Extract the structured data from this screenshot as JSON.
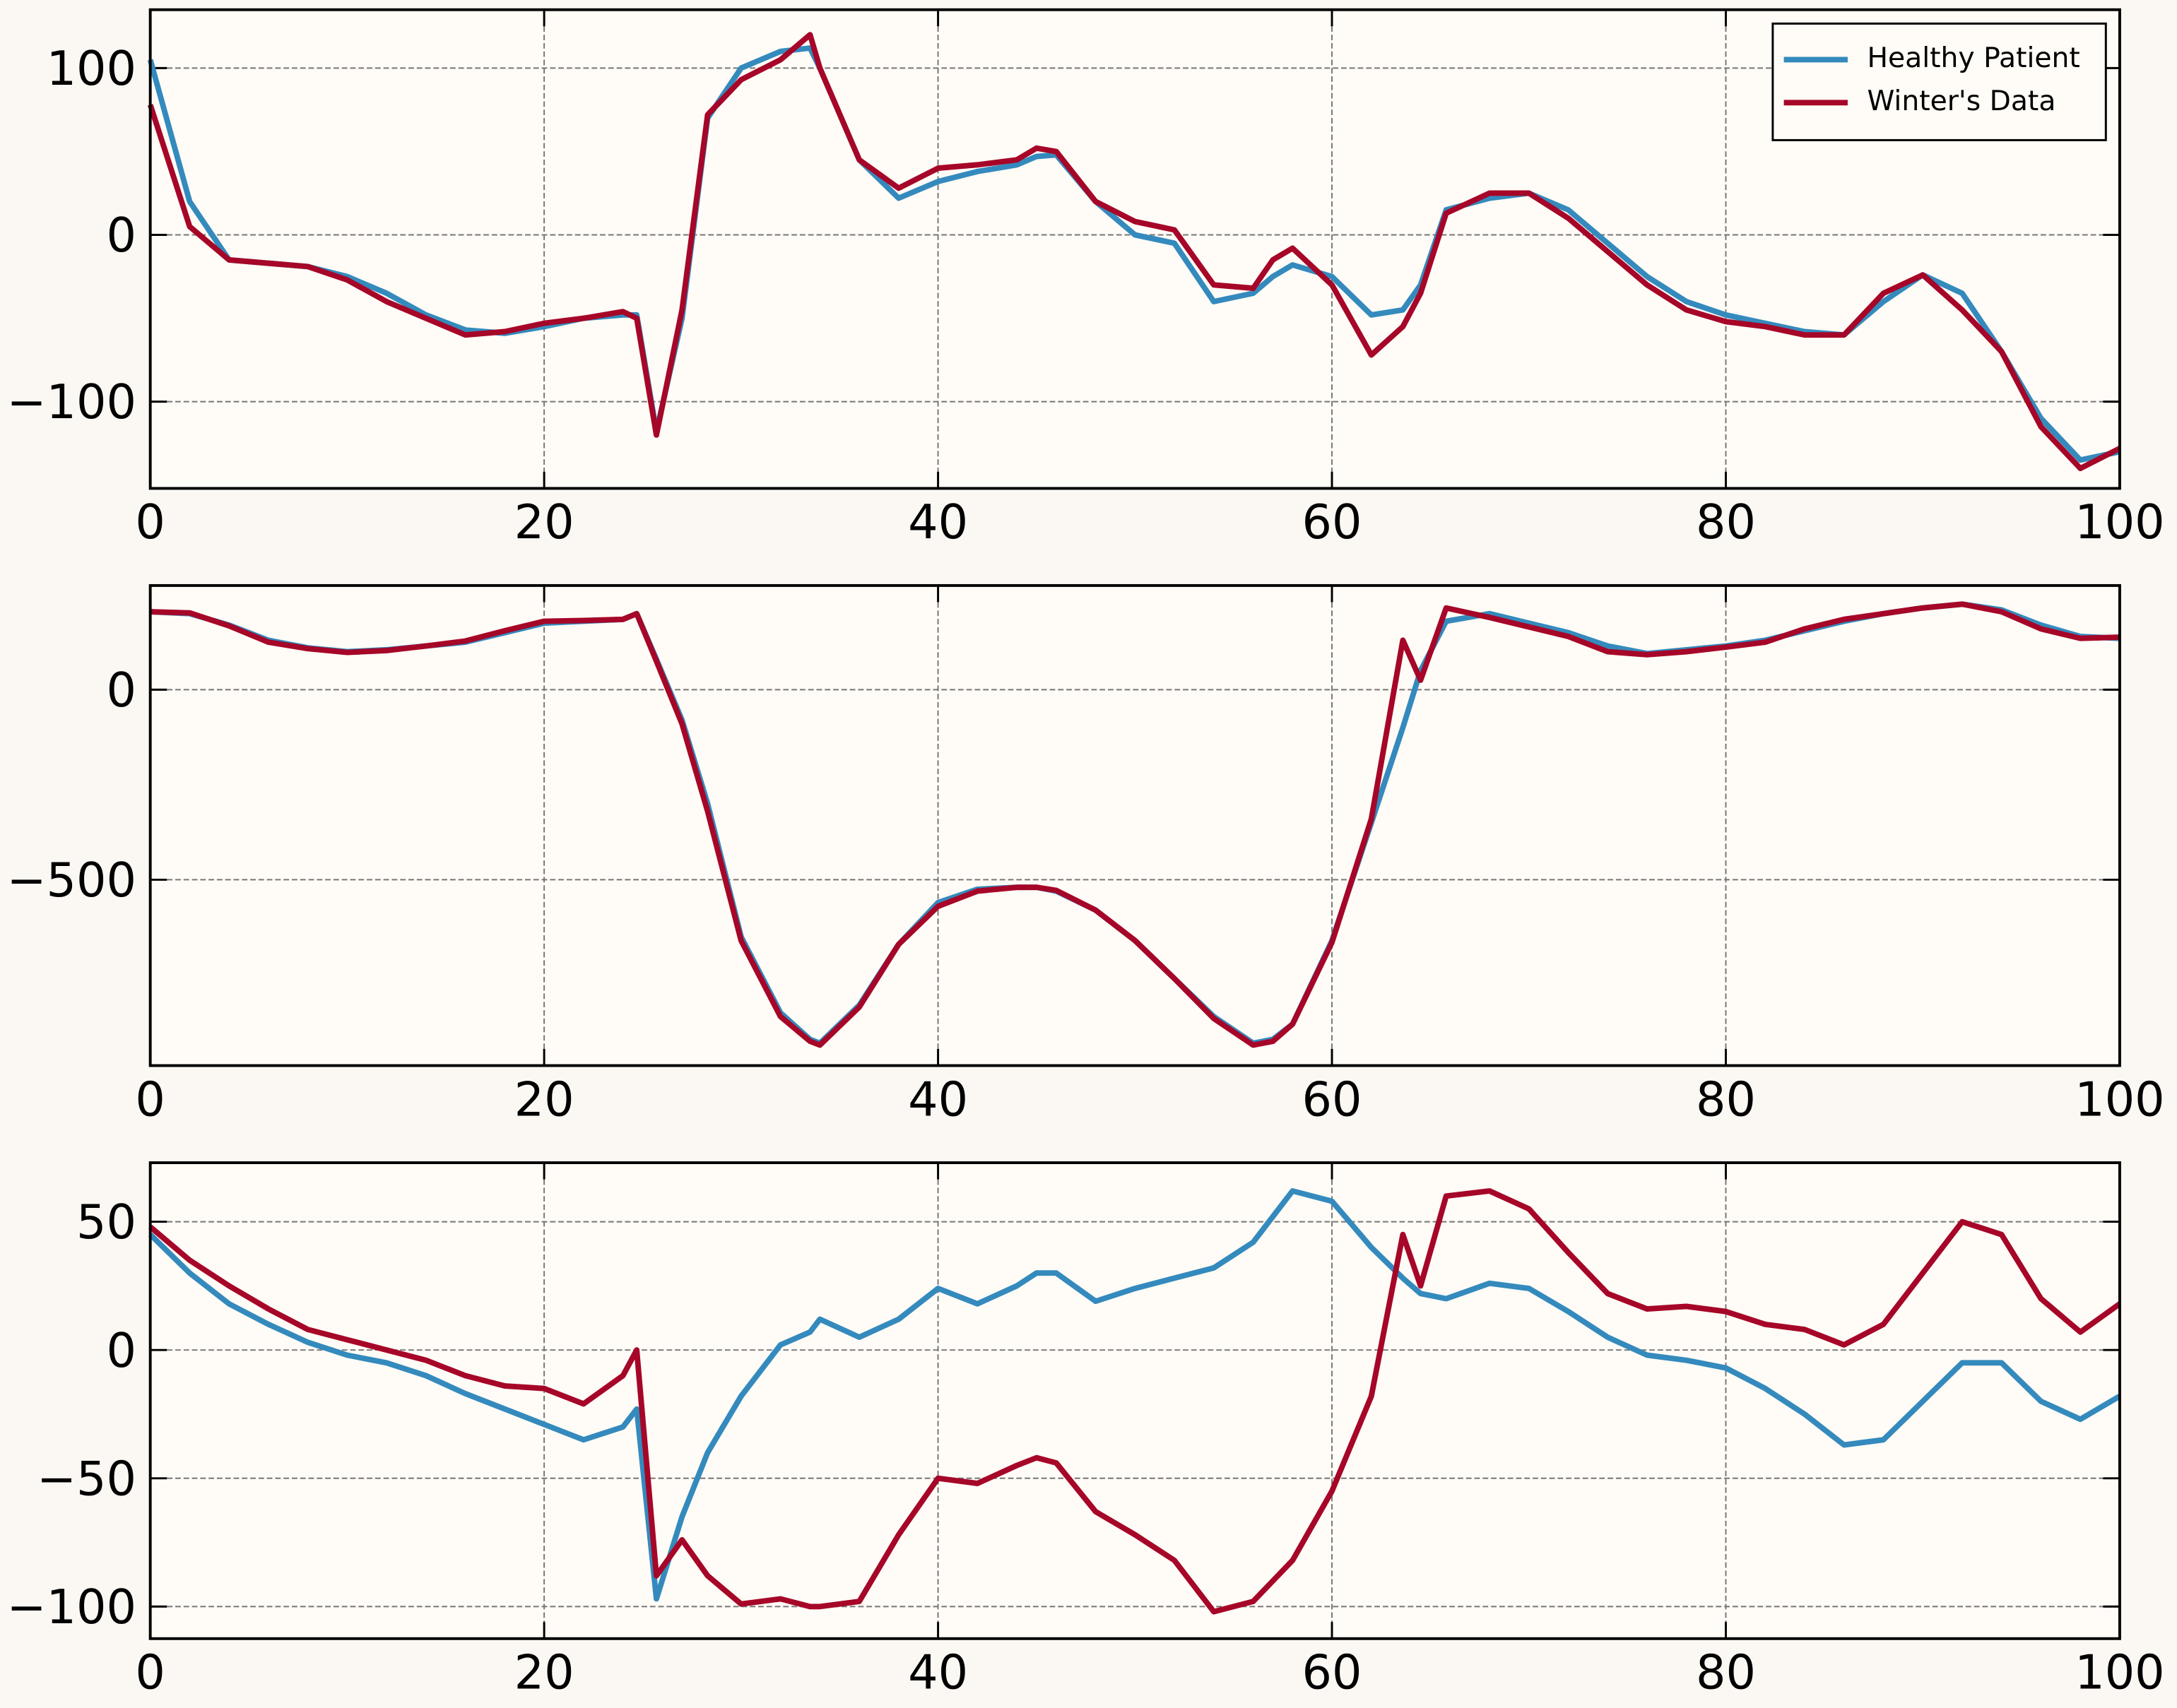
{
  "chart_data": [
    {
      "type": "line",
      "legend": "upper right",
      "grid": true,
      "xlim": [
        0,
        100
      ],
      "xticks": [
        0,
        20,
        40,
        60,
        80,
        100
      ],
      "ylim": [
        -152,
        135
      ],
      "yticks": [
        {
          "value": -100,
          "label": "−100"
        },
        0,
        100
      ],
      "x": [
        0,
        2,
        4,
        6,
        8,
        10,
        12,
        14,
        16,
        18,
        20,
        22,
        24,
        24.7,
        25.7,
        27,
        28.3,
        30,
        32,
        33.5,
        34,
        36,
        38,
        40,
        42,
        44,
        45,
        46,
        48,
        50,
        52,
        54,
        56,
        57,
        58,
        60,
        62,
        63.6,
        64.5,
        65.8,
        68,
        70,
        72,
        74,
        76,
        78,
        80,
        82,
        84,
        86,
        88,
        90,
        92,
        94,
        96,
        98,
        100
      ],
      "series": [
        {
          "name": "Healthy Patient",
          "color": "#348abd",
          "values": [
            105,
            20,
            -15,
            -17,
            -19,
            -25,
            -35,
            -48,
            -57,
            -59,
            -55,
            -50,
            -48,
            -48,
            -118,
            -50,
            70,
            100,
            110,
            112,
            100,
            45,
            22,
            32,
            38,
            42,
            47,
            48,
            20,
            0,
            -5,
            -40,
            -35,
            -25,
            -18,
            -25,
            -48,
            -45,
            -30,
            15,
            22,
            25,
            15,
            -5,
            -25,
            -40,
            -48,
            -53,
            -58,
            -60,
            -40,
            -24,
            -35,
            -70,
            -110,
            -135,
            -130
          ]
        },
        {
          "name": "Winter's Data",
          "color": "#a60628",
          "values": [
            78,
            5,
            -15,
            -17,
            -19,
            -27,
            -40,
            -50,
            -60,
            -58,
            -53,
            -50,
            -46,
            -50,
            -120,
            -45,
            72,
            93,
            105,
            120,
            100,
            45,
            28,
            40,
            42,
            45,
            52,
            50,
            20,
            8,
            3,
            -30,
            -32,
            -15,
            -8,
            -30,
            -72,
            -55,
            -35,
            13,
            25,
            25,
            10,
            -10,
            -30,
            -45,
            -52,
            -55,
            -60,
            -60,
            -35,
            -24,
            -45,
            -70,
            -115,
            -140,
            -128
          ]
        }
      ]
    },
    {
      "type": "line",
      "grid": true,
      "xlim": [
        0,
        100
      ],
      "xticks": [
        0,
        20,
        40,
        60,
        80,
        100
      ],
      "ylim": [
        -989,
        274
      ],
      "yticks": [
        {
          "value": -500,
          "label": "−500"
        },
        0
      ],
      "x": [
        0,
        2,
        4,
        6,
        8,
        10,
        12,
        14,
        16,
        18,
        20,
        22,
        24,
        24.7,
        25.7,
        27,
        28.3,
        30,
        32,
        33.5,
        34,
        36,
        38,
        40,
        42,
        44,
        45,
        46,
        48,
        50,
        52,
        54,
        56,
        57,
        58,
        60,
        62,
        63.6,
        64.5,
        65.8,
        68,
        70,
        72,
        74,
        76,
        78,
        80,
        82,
        84,
        86,
        88,
        90,
        92,
        94,
        96,
        98,
        100
      ],
      "series": [
        {
          "color": "#348abd",
          "values": [
            205,
            200,
            170,
            130,
            110,
            100,
            105,
            115,
            125,
            150,
            175,
            180,
            185,
            200,
            80,
            -80,
            -300,
            -650,
            -850,
            -920,
            -930,
            -830,
            -670,
            -560,
            -525,
            -520,
            -520,
            -530,
            -580,
            -660,
            -760,
            -860,
            -930,
            -920,
            -880,
            -660,
            -350,
            -100,
            50,
            180,
            200,
            175,
            150,
            115,
            95,
            105,
            115,
            130,
            155,
            180,
            200,
            215,
            225,
            210,
            170,
            140,
            135
          ]
        },
        {
          "color": "#a60628",
          "values": [
            205,
            202,
            168,
            125,
            108,
            98,
            103,
            115,
            128,
            155,
            180,
            182,
            185,
            200,
            75,
            -90,
            -320,
            -660,
            -860,
            -925,
            -935,
            -835,
            -670,
            -570,
            -530,
            -520,
            -520,
            -528,
            -580,
            -660,
            -760,
            -865,
            -935,
            -925,
            -880,
            -665,
            -340,
            130,
            25,
            215,
            190,
            165,
            140,
            100,
            92,
            100,
            112,
            125,
            160,
            185,
            200,
            215,
            225,
            205,
            160,
            135,
            138
          ]
        }
      ]
    },
    {
      "type": "line",
      "grid": true,
      "xlim": [
        0,
        100
      ],
      "xticks": [
        0,
        20,
        40,
        60,
        80,
        100
      ],
      "ylim": [
        -112.5,
        73
      ],
      "yticks": [
        {
          "value": -100,
          "label": "−100"
        },
        {
          "value": -50,
          "label": "−50"
        },
        0,
        50
      ],
      "x": [
        0,
        2,
        4,
        6,
        8,
        10,
        12,
        14,
        16,
        18,
        20,
        22,
        24,
        24.7,
        25.7,
        27,
        28.3,
        30,
        32,
        33.5,
        34,
        36,
        38,
        40,
        42,
        44,
        45,
        46,
        48,
        50,
        52,
        54,
        56,
        57,
        58,
        60,
        62,
        63.6,
        64.5,
        65.8,
        68,
        70,
        72,
        74,
        76,
        78,
        80,
        82,
        84,
        86,
        88,
        90,
        92,
        94,
        96,
        98,
        100
      ],
      "series": [
        {
          "color": "#348abd",
          "values": [
            45,
            30,
            18,
            10,
            3,
            -2,
            -5,
            -10,
            -17,
            -23,
            -29,
            -35,
            -30,
            -23,
            -97,
            -65,
            -40,
            -18,
            2,
            7,
            12,
            5,
            12,
            24,
            18,
            25,
            30,
            30,
            19,
            24,
            28,
            32,
            42,
            52,
            62,
            58,
            40,
            28,
            22,
            20,
            26,
            24,
            15,
            5,
            -2,
            -4,
            -7,
            -15,
            -25,
            -37,
            -35,
            -20,
            -5,
            -5,
            -20,
            -27,
            -18
          ]
        },
        {
          "color": "#a60628",
          "values": [
            48,
            35,
            25,
            16,
            8,
            4,
            0,
            -4,
            -10,
            -14,
            -15,
            -21,
            -10,
            0,
            -88,
            -74,
            -88,
            -99,
            -97,
            -100,
            -100,
            -98,
            -72,
            -50,
            -52,
            -45,
            -42,
            -44,
            -63,
            -72,
            -82,
            -102,
            -98,
            -90,
            -82,
            -55,
            -18,
            45,
            25,
            60,
            62,
            55,
            38,
            22,
            16,
            17,
            15,
            10,
            8,
            2,
            10,
            30,
            50,
            45,
            20,
            7,
            18
          ]
        }
      ]
    }
  ]
}
